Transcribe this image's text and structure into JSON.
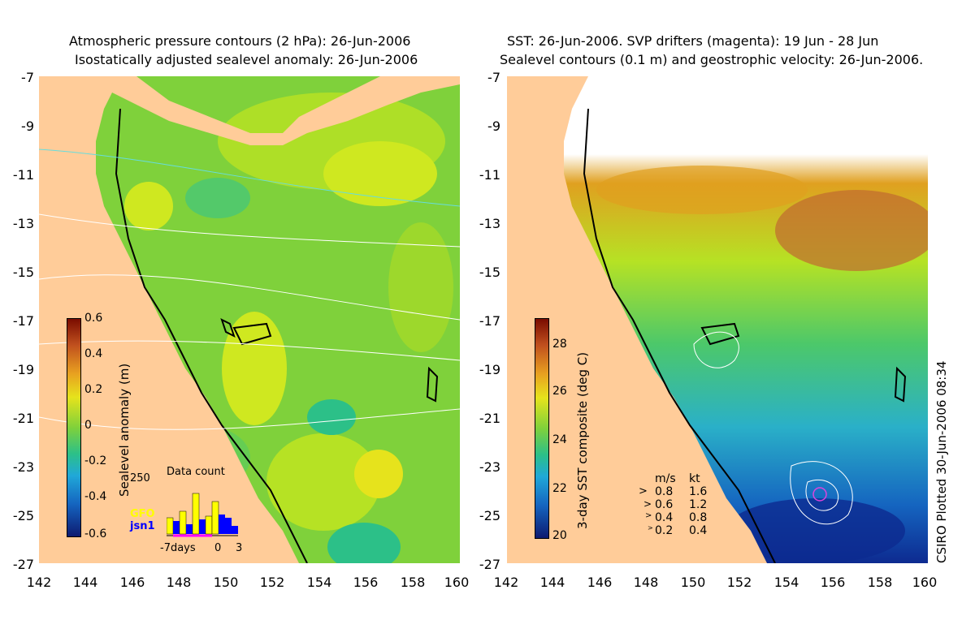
{
  "left": {
    "title_line1": "Atmospheric pressure contours (2 hPa): 26-Jun-2006",
    "title_line2": "Isostatically adjusted sealevel anomaly: 26-Jun-2006",
    "colorbar_label": "Sealevel anomaly (m)",
    "colorbar_ticks": [
      "0.6",
      "0.4",
      "0.2",
      "0",
      "-0.2",
      "-0.4",
      "-0.6"
    ],
    "data_count_title": "Data count",
    "data_count_max": "250",
    "satellite_1": "GFO",
    "satellite_2": "jsn1",
    "days_axis": [
      "-7days",
      "0",
      "3"
    ],
    "colors": {
      "gfo": "#ffff00",
      "jsn1": "#0000ff"
    }
  },
  "right": {
    "title_line1": "SST: 26-Jun-2006. SVP drifters (magenta): 19 Jun - 28 Jun",
    "title_line2": "Sealevel contours (0.1 m) and geostrophic velocity: 26-Jun-2006.",
    "colorbar_label": "3-day SST composite (deg C)",
    "colorbar_ticks": [
      "28",
      "26",
      "24",
      "22",
      "20"
    ],
    "velocity_legend_header": {
      "ms": "m/s",
      "kt": "kt"
    },
    "velocity_legend": [
      {
        "ms": "0.8",
        "kt": "1.6"
      },
      {
        "ms": "0.6",
        "kt": "1.2"
      },
      {
        "ms": "0.4",
        "kt": "0.8"
      },
      {
        "ms": "0.2",
        "kt": "0.4"
      }
    ],
    "credit": "CSIRO Plotted 30-Jun-2006 08:34"
  },
  "axes": {
    "lat_ticks": [
      "-7",
      "-9",
      "-11",
      "-13",
      "-15",
      "-17",
      "-19",
      "-21",
      "-23",
      "-25",
      "-27"
    ],
    "lon_ticks": [
      "142",
      "144",
      "146",
      "148",
      "150",
      "152",
      "154",
      "156",
      "158",
      "160"
    ]
  },
  "colors": {
    "land": "#ffcc99",
    "sla_bg": "#7fd13b",
    "sla_high": "#cfe820",
    "sla_low": "#2cc088",
    "sst_cold": "#1565c0",
    "sst_mid": "#4cc86a",
    "sst_warm": "#e0a020"
  }
}
